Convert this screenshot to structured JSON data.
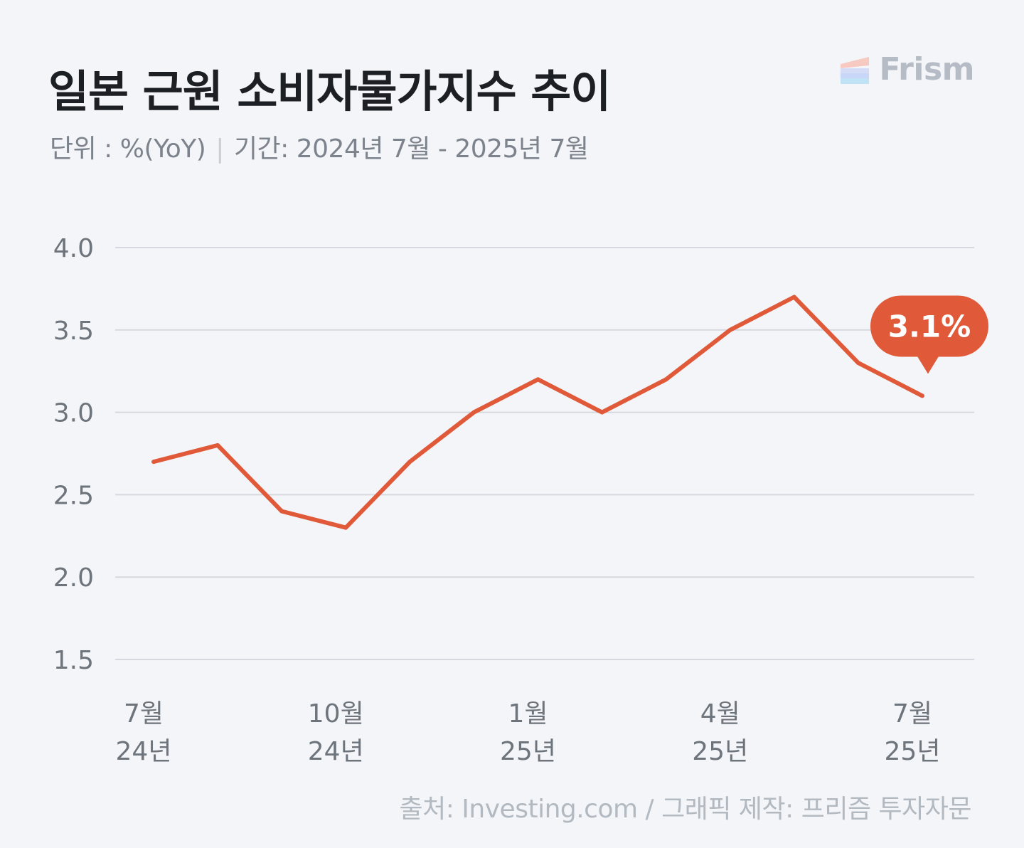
{
  "header": {
    "title": "일본 근원 소비자물가지수 추이",
    "unit_label": "단위 : %(YoY)",
    "period_label": "기간: 2024년 7월 - 2025년 7월"
  },
  "brand": {
    "name": "Frism",
    "icon": "frism-logo-icon"
  },
  "footer": {
    "source": "출처: Investing.com  / 그래픽 제작: 프리즘 투자자문"
  },
  "colors": {
    "line": "#e05a3a",
    "grid": "#d5d9df",
    "tick": "#6e747c",
    "callout": "#e05a3a"
  },
  "chart_data": {
    "type": "line",
    "x": [
      "2024-07",
      "2024-08",
      "2024-09",
      "2024-10",
      "2024-11",
      "2024-12",
      "2025-01",
      "2025-02",
      "2025-03",
      "2025-04",
      "2025-05",
      "2025-06",
      "2025-07"
    ],
    "values": [
      2.7,
      2.8,
      2.4,
      2.3,
      2.7,
      3.0,
      3.2,
      3.0,
      3.2,
      3.5,
      3.7,
      3.3,
      3.1
    ],
    "ylim": [
      1.5,
      4.0
    ],
    "yticks": [
      "1.5",
      "2.0",
      "2.5",
      "3.0",
      "3.5",
      "4.0"
    ],
    "xticks": [
      {
        "index": 0,
        "month": "7월",
        "year": "24년"
      },
      {
        "index": 3,
        "month": "10월",
        "year": "24년"
      },
      {
        "index": 6,
        "month": "1월",
        "year": "25년"
      },
      {
        "index": 9,
        "month": "4월",
        "year": "25년"
      },
      {
        "index": 12,
        "month": "7월",
        "year": "25년"
      }
    ],
    "annotation": {
      "index": 12,
      "text": "3.1%"
    },
    "grid": true,
    "legend": "none"
  }
}
